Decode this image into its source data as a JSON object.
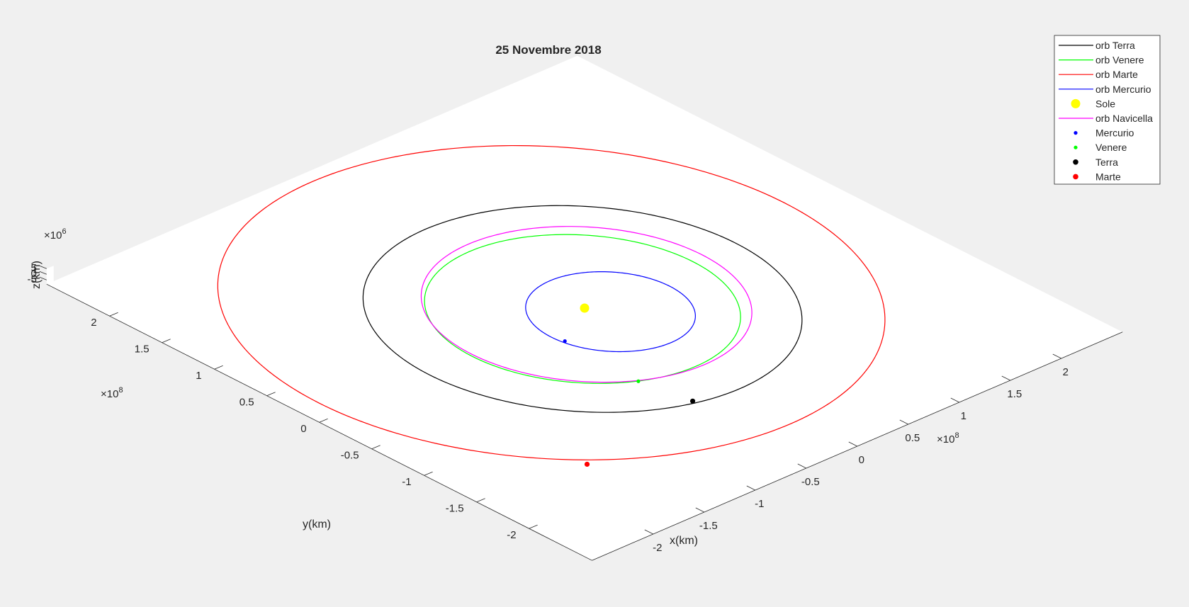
{
  "chart_data": {
    "type": "line",
    "title": "25 Novembre 2018",
    "xlabel": "x(km)",
    "ylabel": "y(km)",
    "zlabel": "z(km)",
    "x_exponent": "×10",
    "x_exponent_power": "8",
    "y_exponent": "×10",
    "y_exponent_power": "8",
    "z_exponent": "×10",
    "z_exponent_power": "6",
    "xlim": [
      -2.5,
      2.5
    ],
    "ylim": [
      -2.5,
      2.5
    ],
    "x_ticks": [
      "-2",
      "-1.5",
      "-1",
      "-0.5",
      "0",
      "0.5",
      "1",
      "1.5",
      "2"
    ],
    "y_ticks": [
      "-2",
      "-1.5",
      "-1",
      "-0.5",
      "0",
      "0.5",
      "1",
      "1.5",
      "2"
    ],
    "z_ticks": [
      "5",
      "0",
      "-5"
    ],
    "grid": false,
    "legend_position": "top-right",
    "series": [
      {
        "name": "orb Terra",
        "kind": "orbit",
        "color": "#000000",
        "center": [
          -0.02,
          0.0
        ],
        "a": 1.5,
        "b": 1.5
      },
      {
        "name": "orb Venere",
        "kind": "orbit",
        "color": "#00ff00",
        "center": [
          -0.02,
          0.0
        ],
        "a": 1.08,
        "b": 1.08
      },
      {
        "name": "orb Marte",
        "kind": "orbit",
        "color": "#ff0000",
        "center": [
          -0.12,
          0.2
        ],
        "a": 2.28,
        "b": 2.28
      },
      {
        "name": "orb Mercurio",
        "kind": "orbit",
        "color": "#0000ff",
        "center": [
          0.1,
          -0.15
        ],
        "a": 0.58,
        "b": 0.58
      },
      {
        "name": "Sole",
        "kind": "marker",
        "color": "#ffff00",
        "x": 0.0,
        "y": 0.0
      },
      {
        "name": "orb Navicella",
        "kind": "orbit",
        "color": "#ff00ff",
        "center": [
          0.05,
          0.03
        ],
        "a": 1.13,
        "b": 1.13
      },
      {
        "name": "Mercurio",
        "kind": "marker",
        "color": "#0000ff",
        "x": -0.45,
        "y": -0.25
      },
      {
        "name": "Venere",
        "kind": "marker",
        "color": "#00ff00",
        "x": -0.48,
        "y": -0.98
      },
      {
        "name": "Terra",
        "kind": "marker",
        "color": "#000000",
        "x": -0.4,
        "y": -1.42
      },
      {
        "name": "Marte",
        "kind": "marker",
        "color": "#ff0000",
        "x": -1.62,
        "y": -1.6
      }
    ]
  }
}
